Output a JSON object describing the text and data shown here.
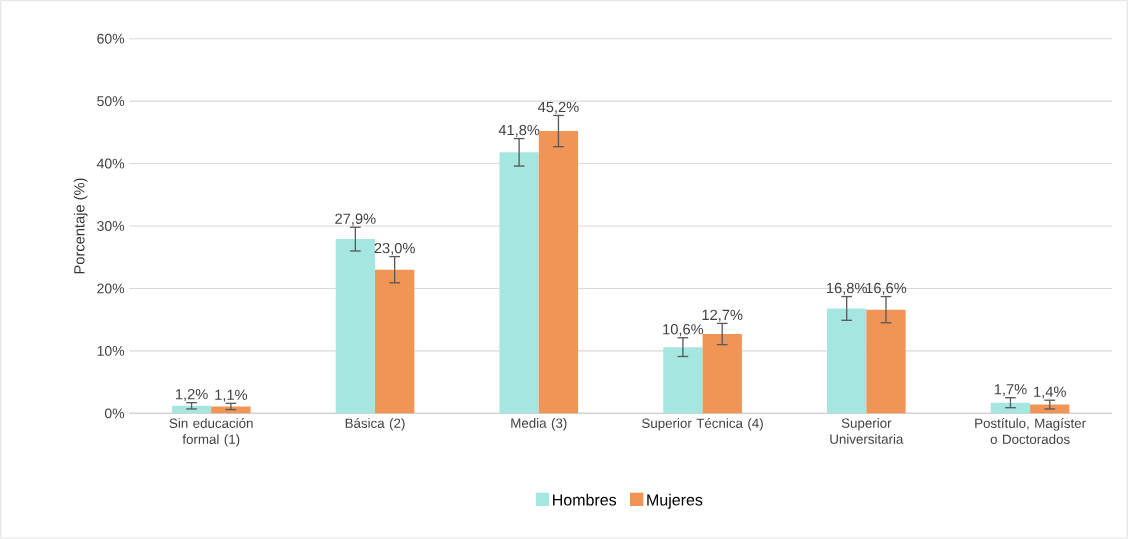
{
  "chart_data": {
    "type": "bar",
    "ylabel": "Porcentaje (%)",
    "categories": [
      "Sin educación formal (1)",
      "Básica (2)",
      "Media (3)",
      "Superior Técnica (4)",
      "Superior Universitaria",
      "Postítulo, Magíster o Doctorados"
    ],
    "series": [
      {
        "name": "Hombres",
        "color": "#a5e6e1",
        "values": [
          1.2,
          27.9,
          41.8,
          10.6,
          16.8,
          1.7
        ],
        "errors": [
          0.5,
          1.9,
          2.2,
          1.5,
          1.9,
          0.8
        ],
        "value_labels": [
          "1,2%",
          "27,9%",
          "41,8%",
          "10,6%",
          "16,8%",
          "1,7%"
        ]
      },
      {
        "name": "Mujeres",
        "color": "#f09555",
        "values": [
          1.1,
          23.0,
          45.2,
          12.7,
          16.6,
          1.4
        ],
        "errors": [
          0.5,
          2.1,
          2.5,
          1.7,
          2.1,
          0.7
        ],
        "value_labels": [
          "1,1%",
          "23,0%",
          "45,2%",
          "12,7%",
          "16,6%",
          "1,4%"
        ]
      }
    ],
    "ylim": [
      0,
      60
    ],
    "yticks": [
      {
        "value": 0,
        "label": "0%"
      },
      {
        "value": 10,
        "label": "10%"
      },
      {
        "value": 20,
        "label": "20%"
      },
      {
        "value": 30,
        "label": "30%"
      },
      {
        "value": 40,
        "label": "40%"
      },
      {
        "value": 50,
        "label": "50%"
      },
      {
        "value": 60,
        "label": "60%"
      }
    ],
    "grid": "y",
    "legend": "bottom"
  }
}
